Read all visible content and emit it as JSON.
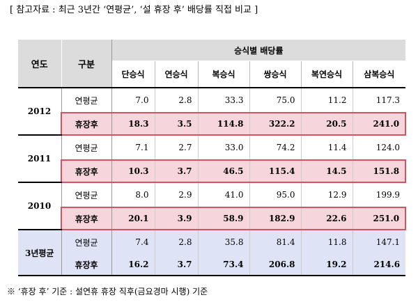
{
  "title": "[ 참고자료 : 최근 3년간 ‘연평균’, ‘설 휴장 후’ 배당률 직접 비교 ]",
  "table": {
    "header_year": "연도",
    "header_category": "구분",
    "header_group": "승식별 배당률",
    "columns": [
      "단승식",
      "연승식",
      "복승식",
      "쌍승식",
      "복연승식",
      "삼복승식"
    ],
    "groups": [
      {
        "year": "2012",
        "rows": [
          {
            "label": "연평균",
            "values": [
              "7.0",
              "2.8",
              "33.3",
              "75.0",
              "11.2",
              "117.3"
            ]
          },
          {
            "label": "휴장후",
            "values": [
              "18.3",
              "3.5",
              "114.8",
              "322.2",
              "20.5",
              "241.0"
            ]
          }
        ]
      },
      {
        "year": "2011",
        "rows": [
          {
            "label": "연평균",
            "values": [
              "7.1",
              "2.7",
              "33.0",
              "74.2",
              "11.4",
              "124.0"
            ]
          },
          {
            "label": "휴장후",
            "values": [
              "10.3",
              "3.7",
              "46.5",
              "115.4",
              "14.5",
              "151.8"
            ]
          }
        ]
      },
      {
        "year": "2010",
        "rows": [
          {
            "label": "연평균",
            "values": [
              "8.0",
              "2.9",
              "41.0",
              "95.0",
              "12.9",
              "199.9"
            ]
          },
          {
            "label": "휴장후",
            "values": [
              "20.1",
              "3.9",
              "58.9",
              "182.9",
              "22.6",
              "251.0"
            ]
          }
        ]
      },
      {
        "year": "3년평균",
        "rows": [
          {
            "label": "연평균",
            "values": [
              "7.4",
              "2.8",
              "35.8",
              "81.4",
              "11.8",
              "147.1"
            ]
          },
          {
            "label": "휴장후",
            "values": [
              "16.2",
              "3.7",
              "73.4",
              "206.8",
              "19.2",
              "214.6"
            ]
          }
        ]
      }
    ]
  },
  "note": "※ ‘휴장 후’ 기준 : 설연휴 휴장 직후(금요경마 시행) 기준",
  "colors": {
    "header_bg": "#dcdcdc",
    "highlight_bg": "#f6d6dc",
    "highlight_border": "#d0545f",
    "average_bg": "#dee3f5"
  }
}
